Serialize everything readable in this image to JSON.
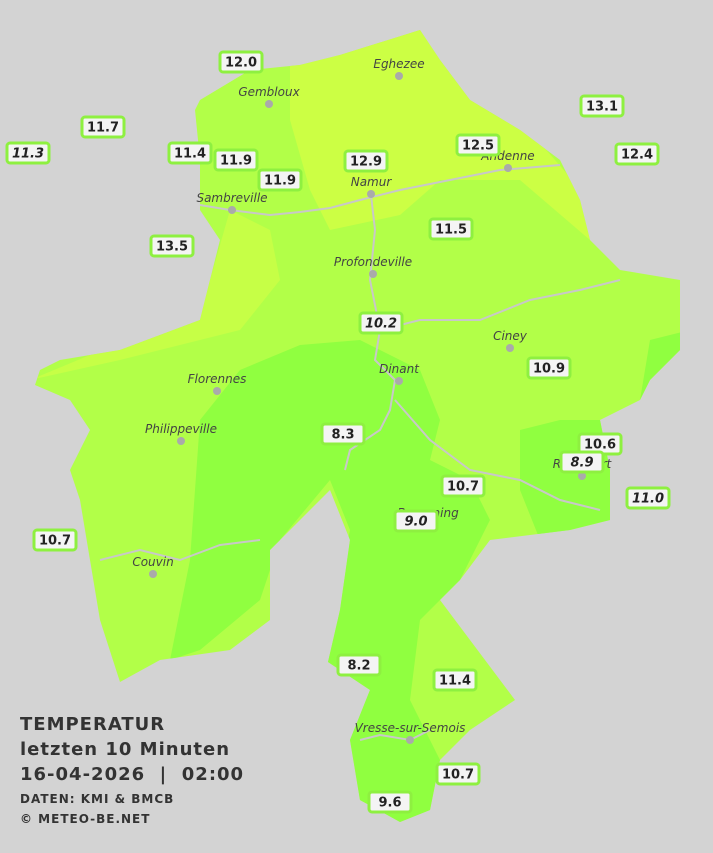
{
  "title": "TEMPERATUR",
  "subtitle": "letzten 10 Minuten",
  "datetime": "16-04-2026  |  02:00",
  "source": "DATEN: KMI & BMCB",
  "copyright": "© METEO-BE.NET",
  "cities": [
    {
      "name": "Eghezee"
    },
    {
      "name": "Gembloux"
    },
    {
      "name": "Andenne"
    },
    {
      "name": "Namur"
    },
    {
      "name": "Sambreville"
    },
    {
      "name": "Profondeville"
    },
    {
      "name": "Ciney"
    },
    {
      "name": "Dinant"
    },
    {
      "name": "Florennes"
    },
    {
      "name": "Philippeville"
    },
    {
      "name": "Rochefort"
    },
    {
      "name": "Beauraing"
    },
    {
      "name": "Couvin"
    },
    {
      "name": "Vresse-sur-Semois"
    }
  ],
  "stations": [
    {
      "label": "12.0",
      "italic": false
    },
    {
      "label": "11.7",
      "italic": false
    },
    {
      "label": "11.3",
      "italic": true
    },
    {
      "label": "11.4",
      "italic": false
    },
    {
      "label": "11.9",
      "italic": false
    },
    {
      "label": "11.9",
      "italic": false
    },
    {
      "label": "12.9",
      "italic": false
    },
    {
      "label": "12.5",
      "italic": false
    },
    {
      "label": "13.1",
      "italic": false
    },
    {
      "label": "12.4",
      "italic": false
    },
    {
      "label": "13.5",
      "italic": false
    },
    {
      "label": "11.5",
      "italic": false
    },
    {
      "label": "10.2",
      "italic": true
    },
    {
      "label": "10.9",
      "italic": false
    },
    {
      "label": "8.3",
      "italic": false
    },
    {
      "label": "10.6",
      "italic": false
    },
    {
      "label": "8.9",
      "italic": true
    },
    {
      "label": "10.7",
      "italic": false
    },
    {
      "label": "9.0",
      "italic": true
    },
    {
      "label": "11.0",
      "italic": true
    },
    {
      "label": "10.7",
      "italic": false
    },
    {
      "label": "8.2",
      "italic": false
    },
    {
      "label": "11.4",
      "italic": false
    },
    {
      "label": "10.7",
      "italic": false
    },
    {
      "label": "9.6",
      "italic": false
    }
  ]
}
